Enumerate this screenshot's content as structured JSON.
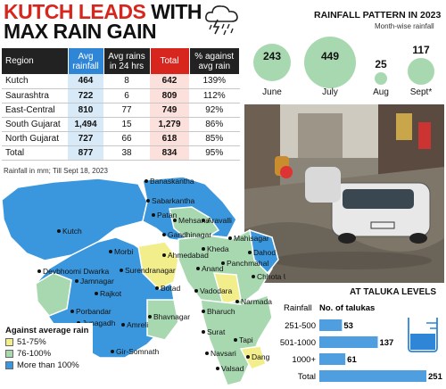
{
  "headline": {
    "line1_red": "KUTCH LEADS",
    "line1_black": "WITH",
    "line2": "MAX RAIN GAIN"
  },
  "table": {
    "headers": [
      "Region",
      "Avg rainfall",
      "Avg rains in 24 hrs",
      "Total",
      "% against avg rain"
    ],
    "rows": [
      {
        "region": "Kutch",
        "avg": "464",
        "h24": "8",
        "total": "642",
        "pct": "139%"
      },
      {
        "region": "Saurashtra",
        "avg": "722",
        "h24": "6",
        "total": "809",
        "pct": "112%"
      },
      {
        "region": "East-Central",
        "avg": "810",
        "h24": "77",
        "total": "749",
        "pct": "92%"
      },
      {
        "region": "South Gujarat",
        "avg": "1,494",
        "h24": "15",
        "total": "1,279",
        "pct": "86%"
      },
      {
        "region": "North Gujarat",
        "avg": "727",
        "h24": "66",
        "total": "618",
        "pct": "85%"
      },
      {
        "region": "Total",
        "avg": "877",
        "h24": "38",
        "total": "834",
        "pct": "95%"
      }
    ],
    "note": "Rainfall in mm; Till Sept 18, 2023"
  },
  "pattern": {
    "title": "RAINFALL PATTERN IN 2023",
    "subtitle": "Month-wise rainfall"
  },
  "map": {
    "places": [
      "Banaskantha",
      "Sabarkantha",
      "Patan",
      "Mehsana",
      "Aravalli",
      "Kutch",
      "Gandhinagar",
      "Mahisagar",
      "Kheda",
      "Dahod",
      "Morbi",
      "Ahmedabad",
      "Panchmahal",
      "Surendranagar",
      "Anand",
      "Chhota Udepur",
      "Devbhoomi Dwarka",
      "Jamnagar",
      "Rajkot",
      "Botad",
      "Vadodara",
      "Narmada",
      "Porbandar",
      "Bhavnagar",
      "Bharuch",
      "Junagadh",
      "Amreli",
      "Surat",
      "Tapi",
      "Gir-Somnath",
      "Navsari",
      "Dang",
      "Valsad"
    ],
    "legend_title": "Against average rain",
    "legend": [
      {
        "label": "51-75%",
        "color": "#f3ee8c"
      },
      {
        "label": "76-100%",
        "color": "#a8d8b0"
      },
      {
        "label": "More than 100%",
        "color": "#3a97dd"
      }
    ]
  },
  "taluka": {
    "title": "AT TALUKA LEVELS",
    "col1": "Rainfall",
    "col2": "No. of talukas"
  },
  "chart_data": [
    {
      "type": "scatter",
      "title": "RAINFALL PATTERN IN 2023",
      "subtitle": "Month-wise rainfall",
      "categories": [
        "June",
        "July",
        "Aug",
        "Sept*"
      ],
      "values": [
        243,
        449,
        25,
        117
      ]
    },
    {
      "type": "bar",
      "title": "AT TALUKA LEVELS",
      "xlabel": "No. of talukas",
      "ylabel": "Rainfall",
      "categories": [
        "251-500",
        "501-1000",
        "1000+",
        "Total"
      ],
      "values": [
        53,
        137,
        61,
        251
      ]
    }
  ]
}
